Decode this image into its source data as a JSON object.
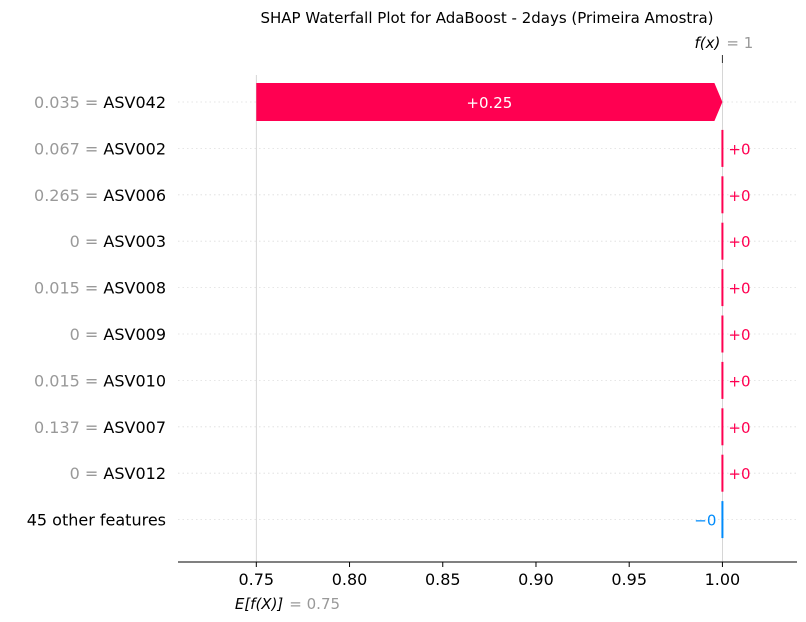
{
  "chart_data": {
    "type": "bar",
    "title": "SHAP Waterfall Plot for AdaBoost - 2days (Primeira Amostra)",
    "base_value": 0.75,
    "base_value_label": "= 0.75",
    "base_value_symbol": "E[f(X)]",
    "output_value": 1,
    "output_value_label": "= 1",
    "output_value_symbol": "f(x)",
    "xlim": [
      0.708,
      1.04
    ],
    "xticks": [
      0.75,
      0.8,
      0.85,
      0.9,
      0.95,
      1.0
    ],
    "xtick_labels": [
      "0.75",
      "0.80",
      "0.85",
      "0.90",
      "0.95",
      "1.00"
    ],
    "grid": "horizontal dotted",
    "colors": {
      "positive": "#ff0051",
      "negative": "#008bfb",
      "value_text": "#999999"
    },
    "features": [
      {
        "value": "0.035",
        "name": "ASV042",
        "shap": 0.25,
        "label": "+0.25"
      },
      {
        "value": "0.067",
        "name": "ASV002",
        "shap": 0.0,
        "label": "+0"
      },
      {
        "value": "0.265",
        "name": "ASV006",
        "shap": 0.0,
        "label": "+0"
      },
      {
        "value": "0",
        "name": "ASV003",
        "shap": 0.0,
        "label": "+0"
      },
      {
        "value": "0.015",
        "name": "ASV008",
        "shap": 0.0,
        "label": "+0"
      },
      {
        "value": "0",
        "name": "ASV009",
        "shap": 0.0,
        "label": "+0"
      },
      {
        "value": "0.015",
        "name": "ASV010",
        "shap": 0.0,
        "label": "+0"
      },
      {
        "value": "0.137",
        "name": "ASV007",
        "shap": 0.0,
        "label": "+0"
      },
      {
        "value": "0",
        "name": "ASV012",
        "shap": 0.0,
        "label": "+0"
      },
      {
        "value": "",
        "name": "45 other features",
        "shap": -0.0,
        "label": "−0"
      }
    ]
  }
}
